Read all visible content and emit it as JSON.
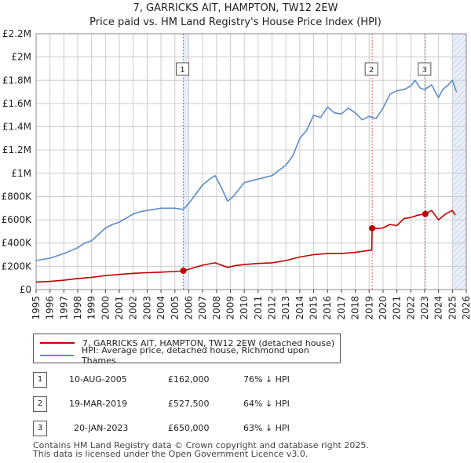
{
  "header": {
    "title": "7, GARRICKS AIT, HAMPTON, TW12 2EW",
    "subtitle": "Price paid vs. HM Land Registry's House Price Index (HPI)"
  },
  "legend": {
    "property": "7, GARRICKS AIT, HAMPTON, TW12 2EW (detached house)",
    "hpi": "HPI: Average price, detached house, Richmond upon Thames"
  },
  "sales": [
    {
      "num": "1",
      "date": "10-AUG-2005",
      "price": "£162,000",
      "pct": "76% ↓ HPI"
    },
    {
      "num": "2",
      "date": "19-MAR-2019",
      "price": "£527,500",
      "pct": "64% ↓ HPI"
    },
    {
      "num": "3",
      "date": "20-JAN-2023",
      "price": "£650,000",
      "pct": "63% ↓ HPI"
    }
  ],
  "footer": {
    "line1": "Contains HM Land Registry data © Crown copyright and database right 2025.",
    "line2": "This data is licensed under the Open Government Licence v3.0."
  },
  "colors": {
    "property": "#c00000",
    "hpi": "#5b8ccc",
    "highlight": "#e8eefa",
    "grid": "#cccccc",
    "vline": "#e06060"
  },
  "chart_data": {
    "type": "line",
    "title": "7, GARRICKS AIT, HAMPTON, TW12 2EW",
    "subtitle": "Price paid vs. HM Land Registry's House Price Index (HPI)",
    "xlim": [
      1995,
      2026
    ],
    "ylim": [
      0,
      2200000
    ],
    "x_ticks": [
      1995,
      1996,
      1997,
      1998,
      1999,
      2000,
      2001,
      2002,
      2003,
      2004,
      2005,
      2006,
      2007,
      2008,
      2009,
      2010,
      2011,
      2012,
      2013,
      2014,
      2015,
      2016,
      2017,
      2018,
      2019,
      2020,
      2021,
      2022,
      2023,
      2024,
      2025,
      2026
    ],
    "y_ticks": [
      0,
      200000,
      400000,
      600000,
      800000,
      1000000,
      1200000,
      1400000,
      1600000,
      1800000,
      2000000,
      2200000
    ],
    "y_tick_labels": [
      "£0",
      "£200K",
      "£400K",
      "£600K",
      "£800K",
      "£1M",
      "£1.2M",
      "£1.4M",
      "£1.6M",
      "£1.8M",
      "£2M",
      "£2.2M"
    ],
    "grid": true,
    "highlight_ranges": [
      [
        2005.61,
        2006.0
      ],
      [
        2025.0,
        2026.0
      ]
    ],
    "series": [
      {
        "name": "HPI: Average price, detached house, Richmond upon Thames",
        "color": "#5b8ccc",
        "x": [
          1995,
          1996,
          1997,
          1998,
          1998.5,
          1999,
          2000,
          2000.5,
          2001,
          2002,
          2002.5,
          2003,
          2004,
          2005,
          2005.6,
          2006,
          2007,
          2007.5,
          2007.9,
          2008.3,
          2008.8,
          2009.2,
          2010,
          2011,
          2012,
          2013,
          2013.5,
          2014,
          2014.5,
          2015,
          2015.5,
          2016,
          2016.5,
          2017,
          2017.5,
          2018,
          2018.5,
          2019,
          2019.5,
          2020,
          2020.5,
          2021,
          2021.5,
          2022,
          2022.3,
          2022.7,
          2023,
          2023.5,
          2024,
          2024.3,
          2024.7,
          2025,
          2025.3
        ],
        "values": [
          250000,
          270000,
          310000,
          360000,
          400000,
          420000,
          530000,
          560000,
          580000,
          650000,
          670000,
          680000,
          700000,
          700000,
          690000,
          740000,
          900000,
          950000,
          980000,
          890000,
          760000,
          800000,
          920000,
          950000,
          980000,
          1070000,
          1150000,
          1300000,
          1370000,
          1500000,
          1480000,
          1570000,
          1520000,
          1510000,
          1560000,
          1520000,
          1460000,
          1490000,
          1470000,
          1560000,
          1680000,
          1710000,
          1720000,
          1750000,
          1800000,
          1730000,
          1720000,
          1760000,
          1650000,
          1720000,
          1760000,
          1800000,
          1700000
        ]
      },
      {
        "name": "7, GARRICKS AIT, HAMPTON, TW12 2EW (detached house)",
        "color": "#c00000",
        "x": [
          1995,
          1996,
          1997,
          1998,
          1999,
          2000,
          2001,
          2002,
          2003,
          2004,
          2005,
          2005.61,
          2006,
          2007,
          2007.9,
          2008.8,
          2009.3,
          2010,
          2011,
          2012,
          2013,
          2014,
          2015,
          2016,
          2017,
          2018,
          2019.19,
          2019.22,
          2019.6,
          2020,
          2020.5,
          2021,
          2021.5,
          2022,
          2022.5,
          2023.05,
          2023.5,
          2024,
          2024.5,
          2025,
          2025.2
        ],
        "values": [
          65000,
          70000,
          80000,
          95000,
          105000,
          120000,
          130000,
          140000,
          145000,
          150000,
          155000,
          162000,
          175000,
          210000,
          230000,
          190000,
          205000,
          215000,
          225000,
          230000,
          250000,
          280000,
          300000,
          310000,
          310000,
          320000,
          340000,
          527500,
          525000,
          530000,
          560000,
          550000,
          610000,
          620000,
          640000,
          650000,
          680000,
          600000,
          650000,
          680000,
          640000
        ]
      }
    ],
    "sales": [
      {
        "id": "1",
        "x": 2005.61,
        "value": 162000
      },
      {
        "id": "2",
        "x": 2019.22,
        "value": 527500
      },
      {
        "id": "3",
        "x": 2023.05,
        "value": 650000
      }
    ]
  }
}
